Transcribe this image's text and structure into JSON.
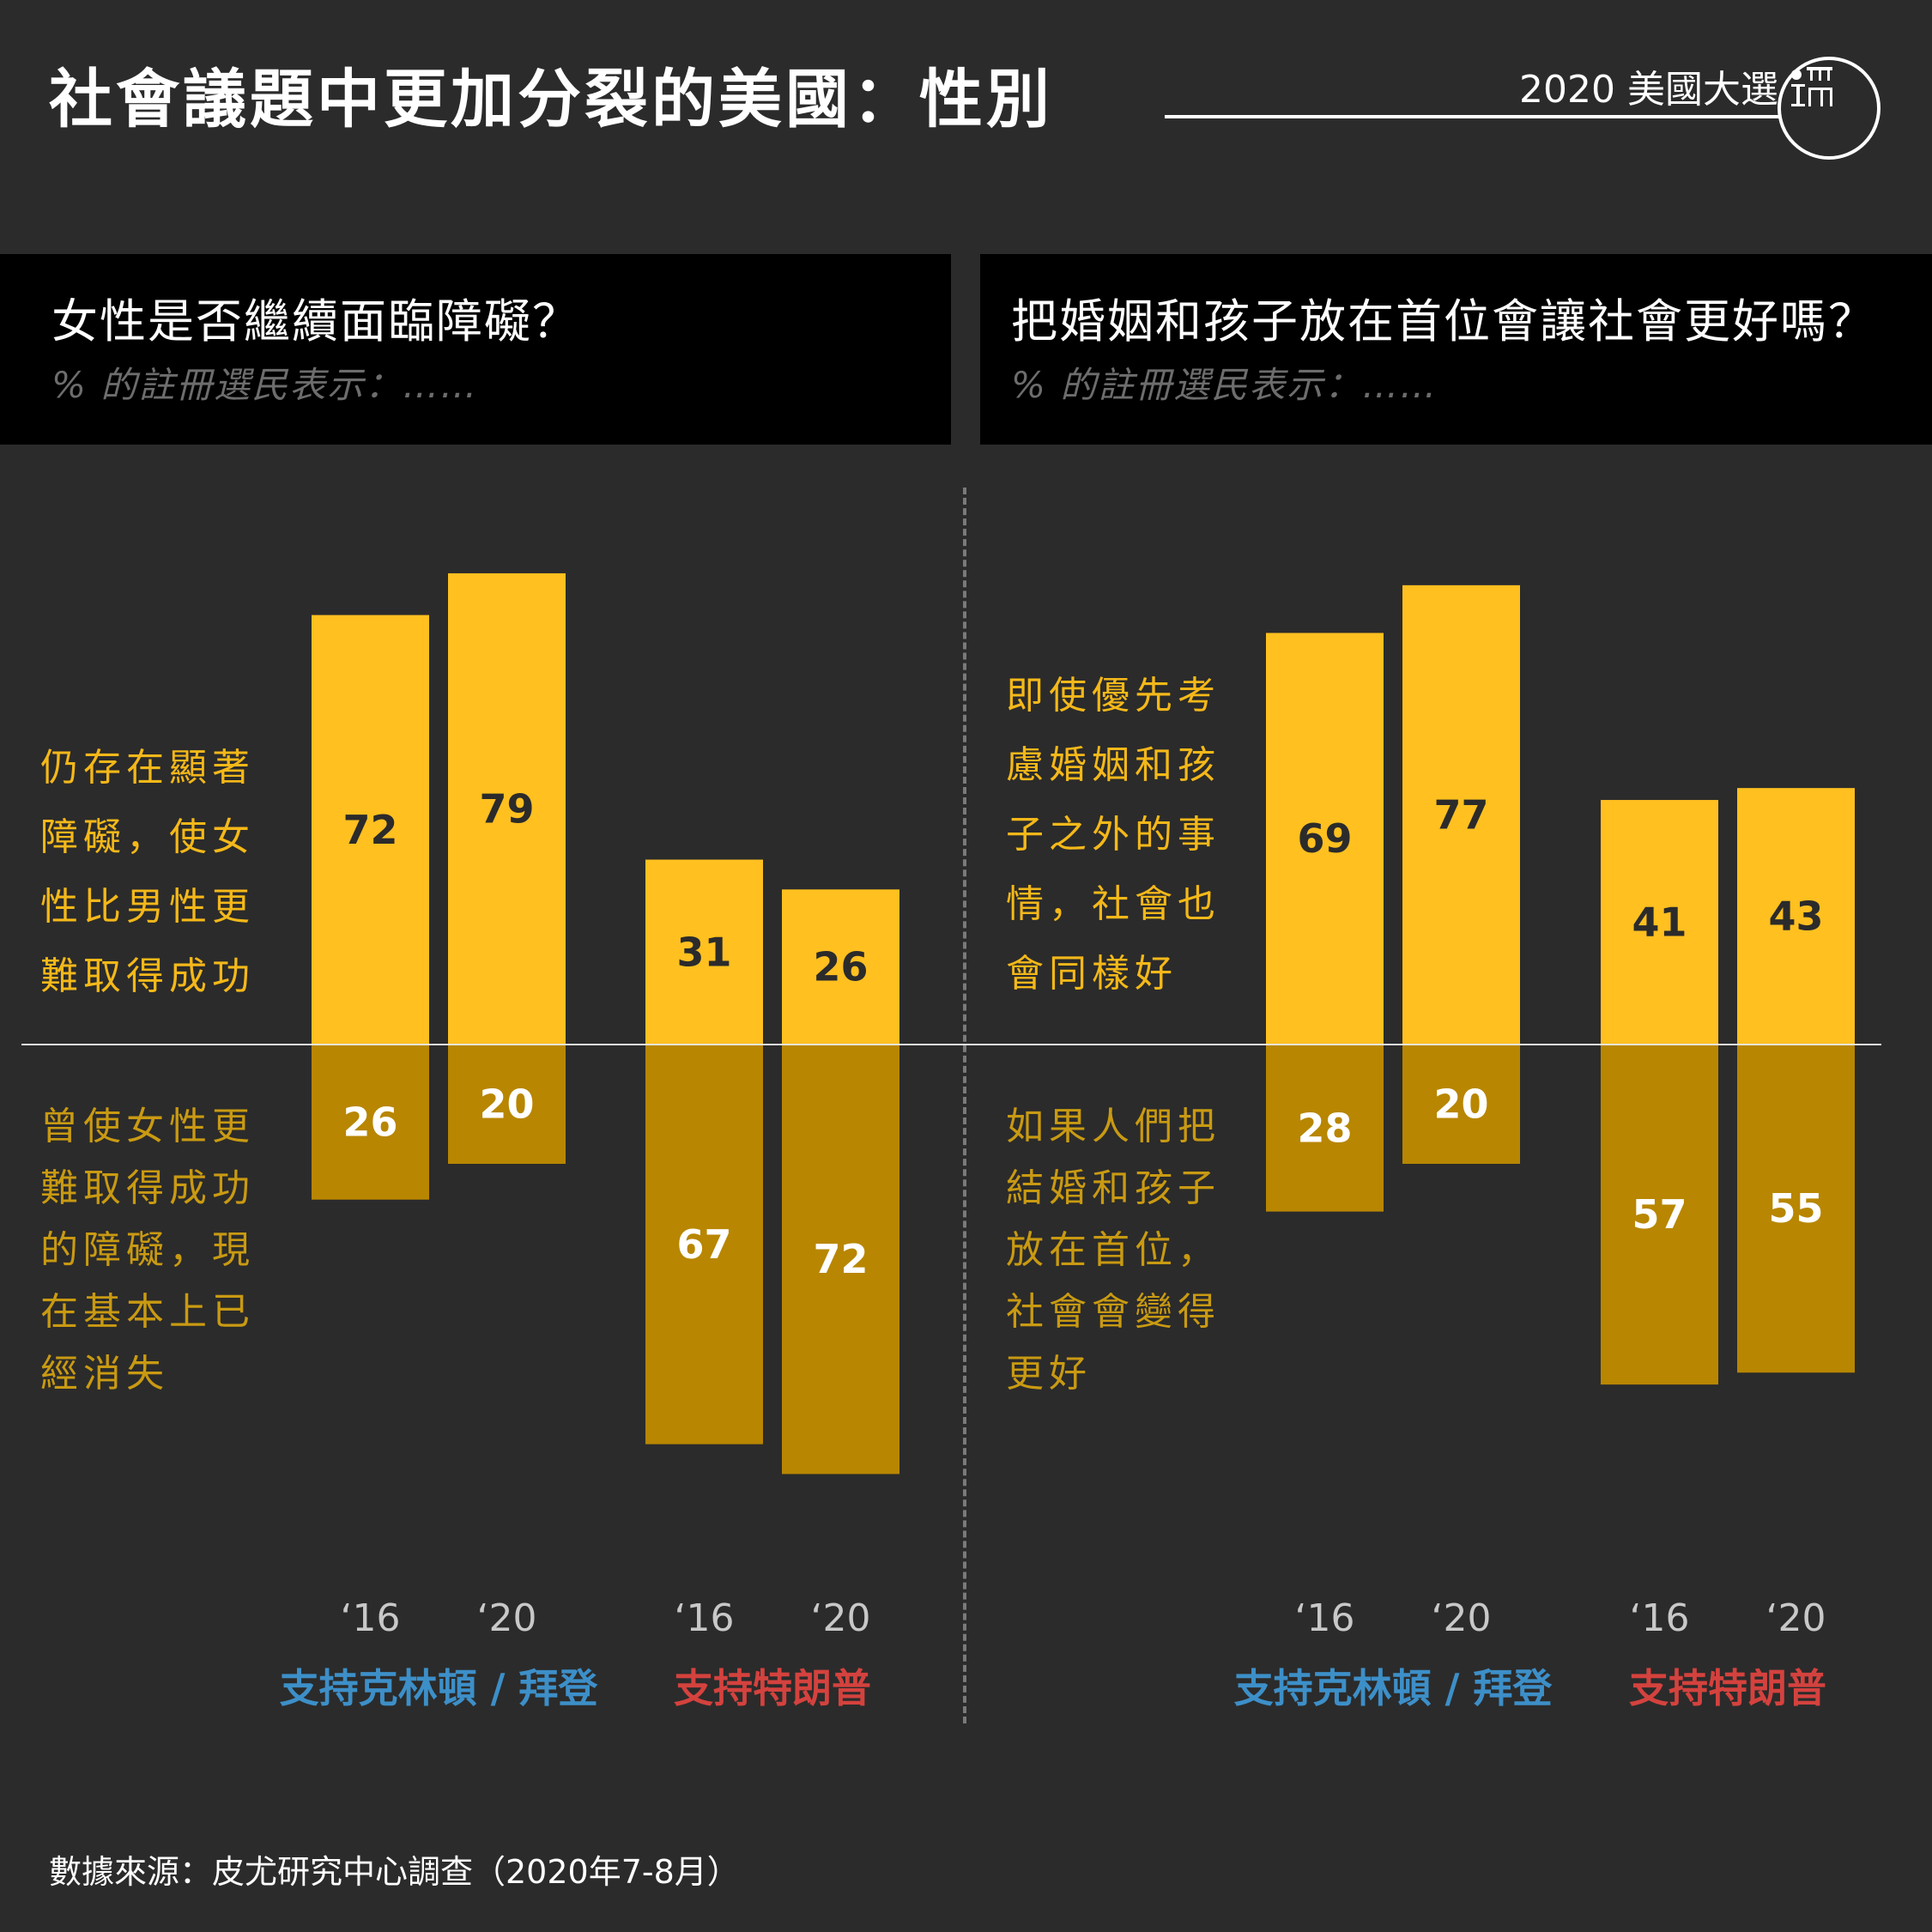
{
  "title": "社會議題中更加分裂的美國：性別",
  "tag": "2020 美國大選",
  "source": "數據來源：皮尤研究中心調查（2020年7-8月）",
  "colors": {
    "background": "#2b2b2b",
    "bar_top": "#ffc020",
    "bar_bottom": "#b88600",
    "clinton_biden": "#3d8fc8",
    "trump": "#d4423e"
  },
  "panels": [
    {
      "question": "女性是否繼續面臨障礙？",
      "subtitle": "% 的註冊選民表示：……",
      "annotation_top": "仍存在顯著障礙，使女性比男性更難取得成功",
      "annotation_bottom": "曾使女性更難取得成功的障礙，現在基本上已經消失"
    },
    {
      "question": "把婚姻和孩子放在首位會讓社會更好嗎？",
      "subtitle": "% 的註冊選民表示：……",
      "annotation_top": "即使優先考慮婚姻和孩子之外的事情，社會也會同樣好",
      "annotation_bottom": "如果人們把結婚和孩子放在首位，社會會變得更好"
    }
  ],
  "chart_data": [
    {
      "type": "bar",
      "title": "女性是否繼續面臨障礙？",
      "subtitle": "% 的註冊選民表示：……",
      "categories": [
        "‘16",
        "‘20",
        "‘16",
        "‘20"
      ],
      "groups": [
        {
          "name": "支持克林頓 / 拜登",
          "categories": [
            "‘16",
            "‘20"
          ]
        },
        {
          "name": "支持特朗普",
          "categories": [
            "‘16",
            "‘20"
          ]
        }
      ],
      "series": [
        {
          "name": "仍存在顯著障礙，使女性比男性更難取得成功",
          "values": [
            72,
            79,
            31,
            26
          ]
        },
        {
          "name": "曾使女性更難取得成功的障礙，現在基本上已經消失",
          "values": [
            26,
            20,
            67,
            72
          ]
        }
      ],
      "ylim": [
        -80,
        80
      ]
    },
    {
      "type": "bar",
      "title": "把婚姻和孩子放在首位會讓社會更好嗎？",
      "subtitle": "% 的註冊選民表示：……",
      "categories": [
        "‘16",
        "‘20",
        "‘16",
        "‘20"
      ],
      "groups": [
        {
          "name": "支持克林頓 / 拜登",
          "categories": [
            "‘16",
            "‘20"
          ]
        },
        {
          "name": "支持特朗普",
          "categories": [
            "‘16",
            "‘20"
          ]
        }
      ],
      "series": [
        {
          "name": "即使優先考慮婚姻和孩子之外的事情，社會也會同樣好",
          "values": [
            69,
            77,
            41,
            43
          ]
        },
        {
          "name": "如果人們把結婚和孩子放在首位，社會會變得更好",
          "values": [
            28,
            20,
            57,
            55
          ]
        }
      ],
      "ylim": [
        -80,
        80
      ]
    }
  ]
}
